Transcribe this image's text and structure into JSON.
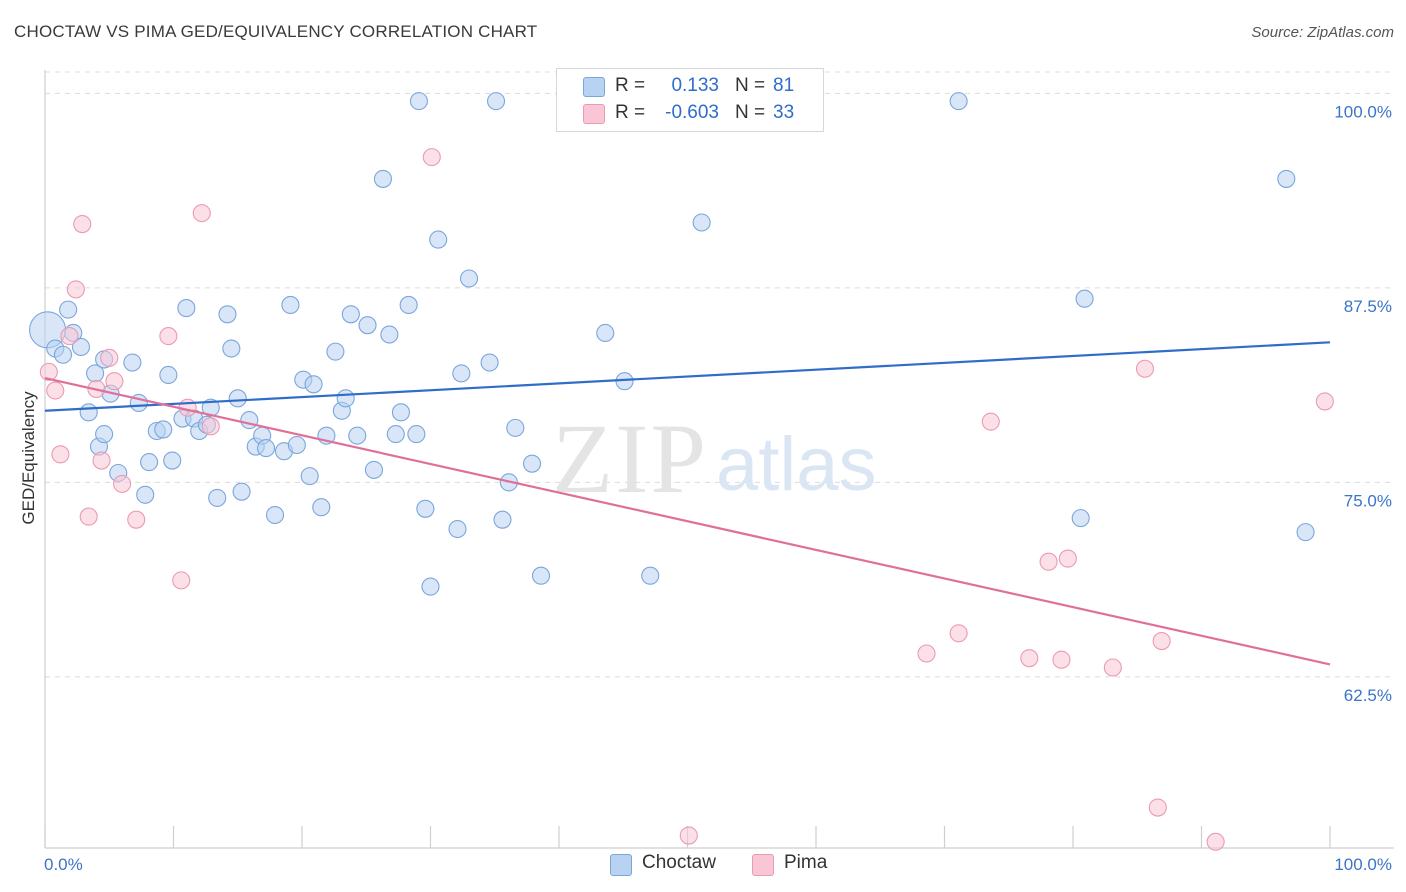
{
  "header": {
    "title": "CHOCTAW VS PIMA GED/EQUIVALENCY CORRELATION CHART",
    "source_prefix": "Source: ",
    "source_link": "ZipAtlas.com"
  },
  "watermark": {
    "zip": "ZIP",
    "atlas": "atlas"
  },
  "legend_top": {
    "rows": [
      {
        "r_label": "R =",
        "r_value": "0.133",
        "n_label": "N =",
        "n_value": "81"
      },
      {
        "r_label": "R =",
        "r_value": "-0.603",
        "n_label": "N =",
        "n_value": "33"
      }
    ]
  },
  "legend_bottom": {
    "items": [
      {
        "label": "Choctaw"
      },
      {
        "label": "Pima"
      }
    ]
  },
  "colors": {
    "choctaw_fill": "#b8d2f2",
    "choctaw_stroke": "#7ba6dc",
    "choctaw_line": "#2f6dc9",
    "pima_fill": "#f8c6d5",
    "pima_stroke": "#eb9ab3",
    "pima_line": "#e0709a",
    "tick_text": "#3b74c8",
    "grid": "#dcdcdc"
  },
  "chart_data": {
    "type": "scatter",
    "title": "CHOCTAW VS PIMA GED/EQUIVALENCY CORRELATION CHART",
    "xlabel": "",
    "ylabel": "GED/Equivalency",
    "xlim": [
      0,
      100
    ],
    "ylim": [
      51.5,
      101.5
    ],
    "x_tick_labels": [
      "0.0%",
      "100.0%"
    ],
    "y_ticks": [
      {
        "value": 100.0,
        "label": "100.0%"
      },
      {
        "value": 87.5,
        "label": "87.5%"
      },
      {
        "value": 75.0,
        "label": "75.0%"
      },
      {
        "value": 62.5,
        "label": "62.5%"
      }
    ],
    "grid": "horizontal dashed",
    "legend": "bottom-center",
    "series": [
      {
        "name": "Choctaw",
        "R": 0.133,
        "N": 81,
        "trend": {
          "x": [
            0,
            100
          ],
          "y": [
            79.6,
            84.0
          ]
        },
        "points": [
          [
            0.2,
            84.8
          ],
          [
            0.8,
            83.6
          ],
          [
            1.4,
            83.2
          ],
          [
            1.8,
            86.1
          ],
          [
            2.2,
            84.6
          ],
          [
            2.8,
            83.7
          ],
          [
            3.4,
            79.5
          ],
          [
            3.9,
            82.0
          ],
          [
            4.2,
            77.3
          ],
          [
            4.6,
            82.9
          ],
          [
            4.6,
            78.1
          ],
          [
            5.1,
            80.7
          ],
          [
            5.7,
            75.6
          ],
          [
            6.8,
            82.7
          ],
          [
            7.3,
            80.1
          ],
          [
            7.8,
            74.2
          ],
          [
            8.1,
            76.3
          ],
          [
            8.7,
            78.3
          ],
          [
            9.2,
            78.4
          ],
          [
            9.6,
            81.9
          ],
          [
            9.9,
            76.4
          ],
          [
            10.7,
            79.1
          ],
          [
            11.0,
            86.2
          ],
          [
            11.6,
            79.1
          ],
          [
            12.0,
            78.3
          ],
          [
            12.6,
            78.7
          ],
          [
            12.9,
            79.8
          ],
          [
            13.4,
            74.0
          ],
          [
            14.2,
            85.8
          ],
          [
            14.5,
            83.6
          ],
          [
            15.0,
            80.4
          ],
          [
            15.3,
            74.4
          ],
          [
            15.9,
            79.0
          ],
          [
            16.4,
            77.3
          ],
          [
            16.9,
            78.0
          ],
          [
            17.2,
            77.2
          ],
          [
            17.9,
            72.9
          ],
          [
            18.6,
            77.0
          ],
          [
            19.1,
            86.4
          ],
          [
            19.6,
            77.4
          ],
          [
            20.1,
            81.6
          ],
          [
            20.6,
            75.4
          ],
          [
            20.9,
            81.3
          ],
          [
            21.5,
            73.4
          ],
          [
            21.9,
            78.0
          ],
          [
            22.6,
            83.4
          ],
          [
            23.1,
            79.6
          ],
          [
            23.4,
            80.4
          ],
          [
            23.8,
            85.8
          ],
          [
            24.3,
            78.0
          ],
          [
            25.1,
            85.1
          ],
          [
            25.6,
            75.8
          ],
          [
            26.3,
            94.5
          ],
          [
            26.8,
            84.5
          ],
          [
            27.3,
            78.1
          ],
          [
            27.7,
            79.5
          ],
          [
            28.3,
            86.4
          ],
          [
            28.9,
            78.1
          ],
          [
            29.1,
            99.5
          ],
          [
            29.6,
            73.3
          ],
          [
            30.0,
            68.3
          ],
          [
            30.6,
            90.6
          ],
          [
            32.1,
            72.0
          ],
          [
            32.4,
            82.0
          ],
          [
            33.0,
            88.1
          ],
          [
            34.6,
            82.7
          ],
          [
            35.1,
            99.5
          ],
          [
            35.6,
            72.6
          ],
          [
            36.1,
            75.0
          ],
          [
            36.6,
            78.5
          ],
          [
            37.9,
            76.2
          ],
          [
            38.6,
            69.0
          ],
          [
            43.6,
            84.6
          ],
          [
            45.1,
            81.5
          ],
          [
            47.1,
            69.0
          ],
          [
            51.1,
            91.7
          ],
          [
            71.1,
            99.5
          ],
          [
            80.6,
            72.7
          ],
          [
            80.9,
            86.8
          ],
          [
            96.6,
            94.5
          ],
          [
            98.1,
            71.8
          ]
        ]
      },
      {
        "name": "Pima",
        "R": -0.603,
        "N": 33,
        "trend": {
          "x": [
            0,
            100
          ],
          "y": [
            81.7,
            63.3
          ]
        },
        "points": [
          [
            0.3,
            82.1
          ],
          [
            0.8,
            80.9
          ],
          [
            1.2,
            76.8
          ],
          [
            1.9,
            84.4
          ],
          [
            2.4,
            87.4
          ],
          [
            2.9,
            91.6
          ],
          [
            3.4,
            72.8
          ],
          [
            4.0,
            81.0
          ],
          [
            4.4,
            76.4
          ],
          [
            5.0,
            83.0
          ],
          [
            5.4,
            81.5
          ],
          [
            6.0,
            74.9
          ],
          [
            7.1,
            72.6
          ],
          [
            9.6,
            84.4
          ],
          [
            10.6,
            68.7
          ],
          [
            11.1,
            79.8
          ],
          [
            12.2,
            92.3
          ],
          [
            12.9,
            78.6
          ],
          [
            30.1,
            95.9
          ],
          [
            50.1,
            52.3
          ],
          [
            68.6,
            64.0
          ],
          [
            71.1,
            65.3
          ],
          [
            73.6,
            78.9
          ],
          [
            76.6,
            63.7
          ],
          [
            78.1,
            69.9
          ],
          [
            79.1,
            63.6
          ],
          [
            79.6,
            70.1
          ],
          [
            83.1,
            63.1
          ],
          [
            85.6,
            82.3
          ],
          [
            86.6,
            54.1
          ],
          [
            86.9,
            64.8
          ],
          [
            91.1,
            51.9
          ],
          [
            99.6,
            80.2
          ]
        ]
      }
    ]
  }
}
